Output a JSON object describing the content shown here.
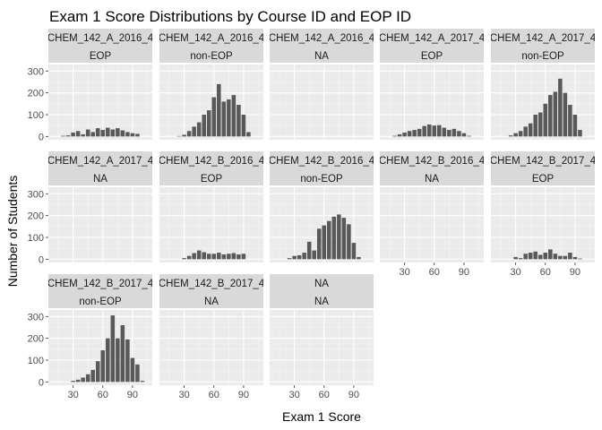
{
  "chart_data": {
    "type": "bar",
    "title": "Exam 1 Score Distributions by Course ID and EOP ID",
    "xlabel": "Exam 1 Score",
    "ylabel": "Number of Students",
    "x_ticks": [
      30,
      60,
      90
    ],
    "y_ticks": [
      0,
      100,
      200,
      300
    ],
    "xlim": [
      5,
      110
    ],
    "ylim": [
      -15,
      330
    ],
    "bin_centers": [
      10,
      15,
      20,
      25,
      30,
      35,
      40,
      45,
      50,
      55,
      60,
      65,
      70,
      75,
      80,
      85,
      90,
      95,
      100
    ],
    "grid": true,
    "layout": "facet_wrap 5 columns",
    "panels": [
      {
        "course": "CHEM_142_A_2016_4",
        "eop": "EOP",
        "values": [
          0,
          0,
          3,
          5,
          18,
          25,
          10,
          32,
          20,
          38,
          30,
          40,
          32,
          38,
          28,
          20,
          15,
          12,
          0
        ]
      },
      {
        "course": "CHEM_142_A_2016_4",
        "eop": "non-EOP",
        "values": [
          0,
          0,
          0,
          2,
          8,
          25,
          45,
          65,
          100,
          120,
          180,
          240,
          160,
          170,
          190,
          145,
          100,
          20,
          0
        ]
      },
      {
        "course": "CHEM_142_A_2016_4",
        "eop": "NA",
        "values": []
      },
      {
        "course": "CHEM_142_A_2017_4",
        "eop": "EOP",
        "values": [
          0,
          0,
          3,
          10,
          18,
          25,
          30,
          35,
          48,
          55,
          50,
          52,
          40,
          30,
          35,
          25,
          15,
          3,
          0
        ]
      },
      {
        "course": "CHEM_142_A_2017_4",
        "eop": "non-EOP",
        "values": [
          0,
          0,
          0,
          5,
          15,
          25,
          45,
          60,
          100,
          110,
          150,
          190,
          205,
          265,
          200,
          145,
          100,
          30,
          0
        ]
      },
      {
        "course": "CHEM_142_A_2017_4",
        "eop": "NA",
        "values": []
      },
      {
        "course": "CHEM_142_B_2016_4",
        "eop": "EOP",
        "values": [
          0,
          0,
          0,
          0,
          5,
          15,
          28,
          40,
          32,
          25,
          25,
          30,
          22,
          25,
          28,
          22,
          25,
          0,
          0
        ]
      },
      {
        "course": "CHEM_142_B_2016_4",
        "eop": "non-EOP",
        "values": [
          0,
          0,
          0,
          5,
          15,
          18,
          30,
          80,
          40,
          140,
          155,
          175,
          195,
          205,
          190,
          160,
          75,
          10,
          0
        ]
      },
      {
        "course": "CHEM_142_B_2016_4",
        "eop": "NA",
        "values": []
      },
      {
        "course": "CHEM_142_B_2017_4",
        "eop": "EOP",
        "values": [
          0,
          0,
          0,
          0,
          10,
          5,
          25,
          30,
          35,
          20,
          30,
          45,
          25,
          15,
          15,
          30,
          10,
          3,
          0
        ]
      },
      {
        "course": "CHEM_142_B_2017_4",
        "eop": "non-EOP",
        "values": [
          0,
          0,
          0,
          0,
          5,
          10,
          20,
          35,
          55,
          95,
          145,
          200,
          305,
          200,
          260,
          195,
          110,
          80,
          5
        ]
      },
      {
        "course": "CHEM_142_B_2017_4",
        "eop": "NA",
        "values": []
      },
      {
        "course": "NA",
        "eop": "NA",
        "values": []
      }
    ]
  }
}
